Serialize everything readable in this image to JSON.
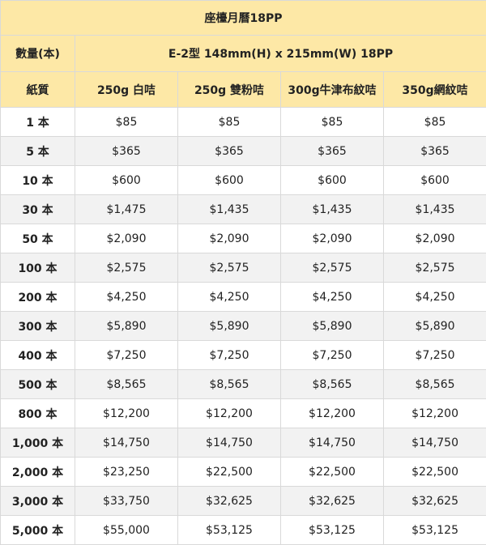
{
  "title": "座檯月曆18PP",
  "header": {
    "qty_label": "數量(本)",
    "spec": "E-2型 148mm(H) x 215mm(W) 18PP",
    "paper_label": "紙質",
    "papers": [
      "250g 白咭",
      "250g 雙粉咭",
      "300g牛津布紋咭",
      "350g網紋咭"
    ]
  },
  "rows": [
    {
      "qty": "1 本",
      "prices": [
        "$85",
        "$85",
        "$85",
        "$85"
      ]
    },
    {
      "qty": "5 本",
      "prices": [
        "$365",
        "$365",
        "$365",
        "$365"
      ]
    },
    {
      "qty": "10 本",
      "prices": [
        "$600",
        "$600",
        "$600",
        "$600"
      ]
    },
    {
      "qty": "30 本",
      "prices": [
        "$1,475",
        "$1,435",
        "$1,435",
        "$1,435"
      ]
    },
    {
      "qty": "50 本",
      "prices": [
        "$2,090",
        "$2,090",
        "$2,090",
        "$2,090"
      ]
    },
    {
      "qty": "100 本",
      "prices": [
        "$2,575",
        "$2,575",
        "$2,575",
        "$2,575"
      ]
    },
    {
      "qty": "200 本",
      "prices": [
        "$4,250",
        "$4,250",
        "$4,250",
        "$4,250"
      ]
    },
    {
      "qty": "300 本",
      "prices": [
        "$5,890",
        "$5,890",
        "$5,890",
        "$5,890"
      ]
    },
    {
      "qty": "400 本",
      "prices": [
        "$7,250",
        "$7,250",
        "$7,250",
        "$7,250"
      ]
    },
    {
      "qty": "500 本",
      "prices": [
        "$8,565",
        "$8,565",
        "$8,565",
        "$8,565"
      ]
    },
    {
      "qty": "800 本",
      "prices": [
        "$12,200",
        "$12,200",
        "$12,200",
        "$12,200"
      ]
    },
    {
      "qty": "1,000 本",
      "prices": [
        "$14,750",
        "$14,750",
        "$14,750",
        "$14,750"
      ]
    },
    {
      "qty": "2,000 本",
      "prices": [
        "$23,250",
        "$22,500",
        "$22,500",
        "$22,500"
      ]
    },
    {
      "qty": "3,000 本",
      "prices": [
        "$33,750",
        "$32,625",
        "$32,625",
        "$32,625"
      ]
    },
    {
      "qty": "5,000 本",
      "prices": [
        "$55,000",
        "$53,125",
        "$53,125",
        "$53,125"
      ]
    }
  ],
  "colors": {
    "header_bg": "#fde8a6",
    "stripe_bg": "#f2f2f2",
    "border": "#d9d9d9"
  }
}
